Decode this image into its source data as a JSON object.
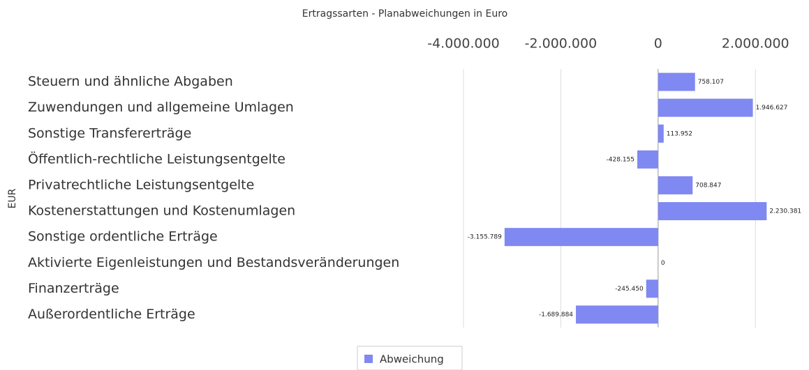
{
  "chart_data": {
    "type": "hbar",
    "title": "Ertragssarten - Planabweichungen in Euro",
    "y_label": "EUR",
    "categories": [
      "Steuern und ähnliche Abgaben",
      "Zuwendungen und allgemeine Umlagen",
      "Sonstige Transfererträge",
      "Öffentlich-rechtliche Leistungsentgelte",
      "Privatrechtliche Leistungsentgelte",
      "Kostenerstattungen und Kostenumlagen",
      "Sonstige ordentliche Erträge",
      "Aktivierte Eigenleistungen und Bestandsveränderungen",
      "Finanzerträge",
      "Außerordentliche Erträge"
    ],
    "series": [
      {
        "name": "Abweichung",
        "color": "#8088f2",
        "values": [
          758107,
          1946627,
          113952,
          -428155,
          708847,
          2230381,
          -3155789,
          0,
          -245450,
          -1689884
        ],
        "value_labels": [
          "758.107",
          "1.946.627",
          "113.952",
          "-428.155",
          "708.847",
          "2.230.381",
          "-3.155.789",
          "0",
          "-245.450",
          "-1.689.884"
        ]
      }
    ],
    "xlim": [
      -4000000,
      3000000
    ],
    "xticks": [
      {
        "value": -4000000,
        "label": "-4.000.000"
      },
      {
        "value": -2000000,
        "label": "-2.000.000"
      },
      0,
      {
        "value": 2000000,
        "label": "2.000.000"
      }
    ],
    "grid": true,
    "legend": "bottom"
  }
}
